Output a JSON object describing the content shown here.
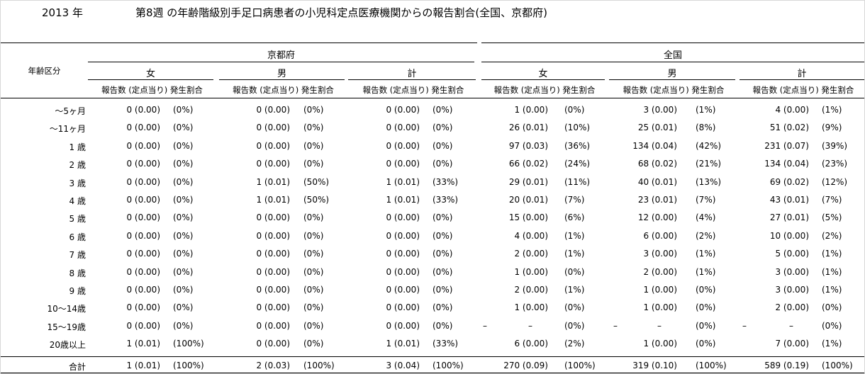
{
  "header": {
    "year": "2013 年",
    "title": "第8週 の年齢階級別手足口病患者の小児科定点医療機関からの報告割合(全国、京都府)"
  },
  "table": {
    "age_header": "年齢区分",
    "regions": [
      "京都府",
      "全国"
    ],
    "sexes": [
      "女",
      "男",
      "計"
    ],
    "subheader": "報告数 (定点当り) 発生割合",
    "rows": [
      {
        "label": "〜5ヶ月",
        "cells": [
          [
            "0 (0.00)",
            "(0%)"
          ],
          [
            "0 (0.00)",
            "(0%)"
          ],
          [
            "0 (0.00)",
            "(0%)"
          ],
          [
            "1 (0.00)",
            "(0%)"
          ],
          [
            "3 (0.00)",
            "(1%)"
          ],
          [
            "4 (0.00)",
            "(1%)"
          ]
        ]
      },
      {
        "label": "〜11ヶ月",
        "cells": [
          [
            "0 (0.00)",
            "(0%)"
          ],
          [
            "0 (0.00)",
            "(0%)"
          ],
          [
            "0 (0.00)",
            "(0%)"
          ],
          [
            "26 (0.01)",
            "(10%)"
          ],
          [
            "25 (0.01)",
            "(8%)"
          ],
          [
            "51 (0.02)",
            "(9%)"
          ]
        ]
      },
      {
        "label": "1 歳",
        "cells": [
          [
            "0 (0.00)",
            "(0%)"
          ],
          [
            "0 (0.00)",
            "(0%)"
          ],
          [
            "0 (0.00)",
            "(0%)"
          ],
          [
            "97 (0.03)",
            "(36%)"
          ],
          [
            "134 (0.04)",
            "(42%)"
          ],
          [
            "231 (0.07)",
            "(39%)"
          ]
        ]
      },
      {
        "label": "2 歳",
        "cells": [
          [
            "0 (0.00)",
            "(0%)"
          ],
          [
            "0 (0.00)",
            "(0%)"
          ],
          [
            "0 (0.00)",
            "(0%)"
          ],
          [
            "66 (0.02)",
            "(24%)"
          ],
          [
            "68 (0.02)",
            "(21%)"
          ],
          [
            "134 (0.04)",
            "(23%)"
          ]
        ]
      },
      {
        "label": "3 歳",
        "cells": [
          [
            "0 (0.00)",
            "(0%)"
          ],
          [
            "1 (0.01)",
            "(50%)"
          ],
          [
            "1 (0.01)",
            "(33%)"
          ],
          [
            "29 (0.01)",
            "(11%)"
          ],
          [
            "40 (0.01)",
            "(13%)"
          ],
          [
            "69 (0.02)",
            "(12%)"
          ]
        ]
      },
      {
        "label": "4 歳",
        "cells": [
          [
            "0 (0.00)",
            "(0%)"
          ],
          [
            "1 (0.01)",
            "(50%)"
          ],
          [
            "1 (0.01)",
            "(33%)"
          ],
          [
            "20 (0.01)",
            "(7%)"
          ],
          [
            "23 (0.01)",
            "(7%)"
          ],
          [
            "43 (0.01)",
            "(7%)"
          ]
        ]
      },
      {
        "label": "5 歳",
        "cells": [
          [
            "0 (0.00)",
            "(0%)"
          ],
          [
            "0 (0.00)",
            "(0%)"
          ],
          [
            "0 (0.00)",
            "(0%)"
          ],
          [
            "15 (0.00)",
            "(6%)"
          ],
          [
            "12 (0.00)",
            "(4%)"
          ],
          [
            "27 (0.01)",
            "(5%)"
          ]
        ]
      },
      {
        "label": "6 歳",
        "cells": [
          [
            "0 (0.00)",
            "(0%)"
          ],
          [
            "0 (0.00)",
            "(0%)"
          ],
          [
            "0 (0.00)",
            "(0%)"
          ],
          [
            "4 (0.00)",
            "(1%)"
          ],
          [
            "6 (0.00)",
            "(2%)"
          ],
          [
            "10 (0.00)",
            "(2%)"
          ]
        ]
      },
      {
        "label": "7 歳",
        "cells": [
          [
            "0 (0.00)",
            "(0%)"
          ],
          [
            "0 (0.00)",
            "(0%)"
          ],
          [
            "0 (0.00)",
            "(0%)"
          ],
          [
            "2 (0.00)",
            "(1%)"
          ],
          [
            "3 (0.00)",
            "(1%)"
          ],
          [
            "5 (0.00)",
            "(1%)"
          ]
        ]
      },
      {
        "label": "8 歳",
        "cells": [
          [
            "0 (0.00)",
            "(0%)"
          ],
          [
            "0 (0.00)",
            "(0%)"
          ],
          [
            "0 (0.00)",
            "(0%)"
          ],
          [
            "1 (0.00)",
            "(0%)"
          ],
          [
            "2 (0.00)",
            "(1%)"
          ],
          [
            "3 (0.00)",
            "(1%)"
          ]
        ]
      },
      {
        "label": "9 歳",
        "cells": [
          [
            "0 (0.00)",
            "(0%)"
          ],
          [
            "0 (0.00)",
            "(0%)"
          ],
          [
            "0 (0.00)",
            "(0%)"
          ],
          [
            "2 (0.00)",
            "(1%)"
          ],
          [
            "1 (0.00)",
            "(0%)"
          ],
          [
            "3 (0.00)",
            "(1%)"
          ]
        ]
      },
      {
        "label": "10〜14歳",
        "cells": [
          [
            "0 (0.00)",
            "(0%)"
          ],
          [
            "0 (0.00)",
            "(0%)"
          ],
          [
            "0 (0.00)",
            "(0%)"
          ],
          [
            "1 (0.00)",
            "(0%)"
          ],
          [
            "1 (0.00)",
            "(0%)"
          ],
          [
            "2 (0.00)",
            "(0%)"
          ]
        ]
      },
      {
        "label": "15〜19歳",
        "cells": [
          [
            "0 (0.00)",
            "(0%)"
          ],
          [
            "0 (0.00)",
            "(0%)"
          ],
          [
            "0 (0.00)",
            "(0%)"
          ],
          [
            "–",
            "(0%)",
            "–"
          ],
          [
            "–",
            "(0%)",
            "–"
          ],
          [
            "–",
            "(0%)",
            "–"
          ]
        ]
      },
      {
        "label": "20歳以上",
        "cells": [
          [
            "1 (0.01)",
            "(100%)"
          ],
          [
            "0 (0.00)",
            "(0%)"
          ],
          [
            "1 (0.01)",
            "(33%)"
          ],
          [
            "6 (0.00)",
            "(2%)"
          ],
          [
            "1 (0.00)",
            "(0%)"
          ],
          [
            "7 (0.00)",
            "(1%)"
          ]
        ]
      },
      {
        "label": "合計",
        "cells": [
          [
            "1 (0.01)",
            "(100%)"
          ],
          [
            "2 (0.03)",
            "(100%)"
          ],
          [
            "3 (0.04)",
            "(100%)"
          ],
          [
            "270 (0.09)",
            "(100%)"
          ],
          [
            "319 (0.10)",
            "(100%)"
          ],
          [
            "589 (0.19)",
            "(100%)"
          ]
        ]
      }
    ]
  }
}
